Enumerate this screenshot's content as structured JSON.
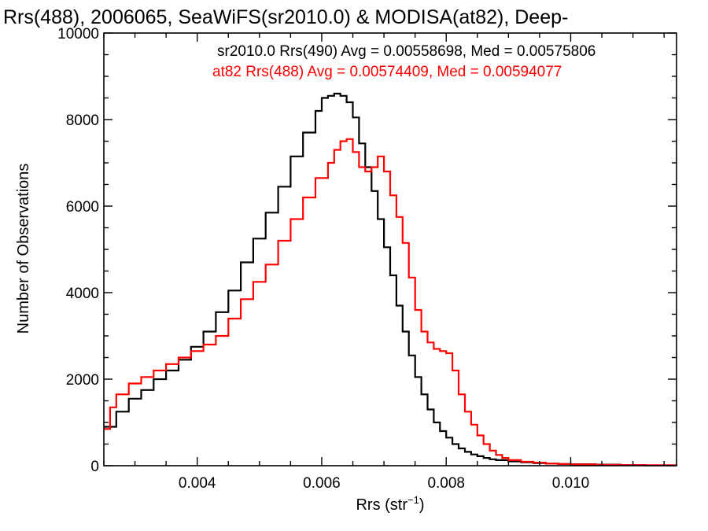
{
  "chart_data": {
    "type": "line",
    "title": "Rrs(488), 2006065, SeaWiFS(sr2010.0) & MODISA(at82), Deep-",
    "xlabel": "Rrs (str",
    "xlabel_sup": "−1",
    "xlabel_close": ")",
    "ylabel": "Number of Observations",
    "xlim": [
      0.0025,
      0.0117
    ],
    "ylim": [
      0,
      10000
    ],
    "x_ticks": [
      0.004,
      0.006,
      0.008,
      0.01
    ],
    "x_tick_labels": [
      "0.004",
      "0.006",
      "0.008",
      "0.010"
    ],
    "y_ticks": [
      0,
      2000,
      4000,
      6000,
      8000,
      10000
    ],
    "y_tick_labels": [
      "0",
      "2000",
      "4000",
      "6000",
      "8000",
      "10000"
    ],
    "grid": false,
    "legend_position": "top-right",
    "series": [
      {
        "label": "sr2010.0 Rrs(490) Avg = 0.00558698, Med = 0.00575806",
        "color": "#000000",
        "style": "step",
        "x": [
          0.0025,
          0.0027,
          0.0029,
          0.0031,
          0.0033,
          0.0035,
          0.0037,
          0.0039,
          0.0041,
          0.0043,
          0.0045,
          0.0047,
          0.0049,
          0.0051,
          0.0053,
          0.0055,
          0.0057,
          0.0059,
          0.006,
          0.0061,
          0.0062,
          0.0063,
          0.0064,
          0.0065,
          0.0066,
          0.0067,
          0.0068,
          0.0069,
          0.007,
          0.0071,
          0.0072,
          0.0073,
          0.0074,
          0.0075,
          0.0076,
          0.0077,
          0.0078,
          0.0079,
          0.008,
          0.0081,
          0.0082,
          0.0083,
          0.0084,
          0.0085,
          0.0086,
          0.0087,
          0.0088,
          0.009,
          0.0092,
          0.0094,
          0.0096,
          0.0098,
          0.01,
          0.0104,
          0.0108,
          0.0112,
          0.0117
        ],
        "y": [
          900,
          1250,
          1550,
          1750,
          2000,
          2200,
          2450,
          2750,
          3100,
          3550,
          4050,
          4700,
          5250,
          5850,
          6450,
          7150,
          7700,
          8200,
          8500,
          8550,
          8600,
          8550,
          8400,
          8050,
          7450,
          6900,
          6350,
          5700,
          5050,
          4400,
          3700,
          3100,
          2550,
          2050,
          1650,
          1300,
          1000,
          800,
          650,
          500,
          400,
          320,
          260,
          220,
          180,
          150,
          130,
          100,
          80,
          60,
          50,
          40,
          35,
          25,
          15,
          10,
          5
        ]
      },
      {
        "label": "at82 Rrs(488) Avg = 0.00574409, Med = 0.00594077",
        "color": "#ff0000",
        "style": "step",
        "x": [
          0.0025,
          0.0026,
          0.0027,
          0.0029,
          0.0031,
          0.0033,
          0.0035,
          0.0037,
          0.0039,
          0.0041,
          0.0043,
          0.0045,
          0.0047,
          0.0049,
          0.0051,
          0.0053,
          0.0055,
          0.0057,
          0.0059,
          0.0061,
          0.0062,
          0.0063,
          0.0064,
          0.0065,
          0.0066,
          0.0067,
          0.0068,
          0.0069,
          0.007,
          0.0071,
          0.0072,
          0.0073,
          0.0074,
          0.0075,
          0.0076,
          0.0077,
          0.0078,
          0.0079,
          0.008,
          0.0081,
          0.0082,
          0.0083,
          0.0084,
          0.0085,
          0.0086,
          0.0087,
          0.0088,
          0.0089,
          0.009,
          0.0092,
          0.0094,
          0.0096,
          0.0098,
          0.01,
          0.0104,
          0.0108,
          0.0112,
          0.0117
        ],
        "y": [
          850,
          1350,
          1650,
          1900,
          2050,
          2200,
          2350,
          2500,
          2650,
          2800,
          3000,
          3400,
          3850,
          4250,
          4650,
          5200,
          5700,
          6200,
          6650,
          7000,
          7300,
          7500,
          7550,
          7250,
          6900,
          6800,
          6900,
          7150,
          6800,
          6250,
          5750,
          5150,
          4350,
          3600,
          3100,
          2850,
          2700,
          2650,
          2600,
          2200,
          1650,
          1250,
          950,
          700,
          500,
          350,
          250,
          180,
          130,
          90,
          70,
          50,
          40,
          30,
          20,
          15,
          10,
          5
        ]
      }
    ]
  }
}
